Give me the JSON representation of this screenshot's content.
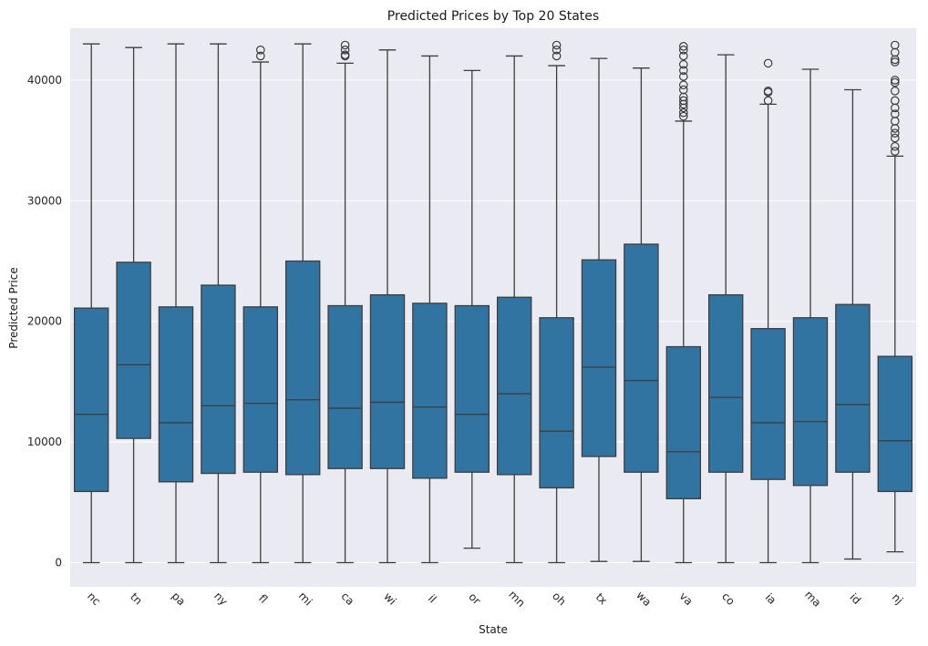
{
  "chart_data": {
    "type": "box",
    "title": "Predicted Prices by Top 20 States",
    "xlabel": "State",
    "ylabel": "Predicted Price",
    "ylim": [
      -2000,
      44300
    ],
    "yticks": [
      0,
      10000,
      20000,
      30000,
      40000
    ],
    "ytick_labels": [
      "0",
      "10000",
      "20000",
      "30000",
      "40000"
    ],
    "grid": true,
    "colors": {
      "box": "#3274a1",
      "background": "#eaeaf2",
      "line": "#3d3d3d",
      "grid": "#ffffff"
    },
    "categories": [
      "nc",
      "tn",
      "pa",
      "ny",
      "fl",
      "mi",
      "ca",
      "wi",
      "il",
      "or",
      "mn",
      "oh",
      "tx",
      "wa",
      "va",
      "co",
      "ia",
      "ma",
      "id",
      "nj"
    ],
    "boxes": [
      {
        "label": "nc",
        "whislo": 0,
        "q1": 5900,
        "med": 12300,
        "q3": 21100,
        "whishi": 43000,
        "fliers": []
      },
      {
        "label": "tn",
        "whislo": 0,
        "q1": 10300,
        "med": 16400,
        "q3": 24900,
        "whishi": 42700,
        "fliers": []
      },
      {
        "label": "pa",
        "whislo": 0,
        "q1": 6700,
        "med": 11600,
        "q3": 21200,
        "whishi": 43000,
        "fliers": []
      },
      {
        "label": "ny",
        "whislo": 0,
        "q1": 7400,
        "med": 13000,
        "q3": 23000,
        "whishi": 43000,
        "fliers": []
      },
      {
        "label": "fl",
        "whislo": 0,
        "q1": 7500,
        "med": 13200,
        "q3": 21200,
        "whishi": 41500,
        "fliers": [
          42000,
          42500
        ]
      },
      {
        "label": "mi",
        "whislo": 0,
        "q1": 7300,
        "med": 13500,
        "q3": 25000,
        "whishi": 43000,
        "fliers": []
      },
      {
        "label": "ca",
        "whislo": 0,
        "q1": 7800,
        "med": 12800,
        "q3": 21300,
        "whishi": 41400,
        "fliers": [
          42000,
          42100,
          42500,
          42900
        ]
      },
      {
        "label": "wi",
        "whislo": 0,
        "q1": 7800,
        "med": 13300,
        "q3": 22200,
        "whishi": 42500,
        "fliers": []
      },
      {
        "label": "il",
        "whislo": 0,
        "q1": 7000,
        "med": 12900,
        "q3": 21500,
        "whishi": 42000,
        "fliers": []
      },
      {
        "label": "or",
        "whislo": 1200,
        "q1": 7500,
        "med": 12300,
        "q3": 21300,
        "whishi": 40800,
        "fliers": []
      },
      {
        "label": "mn",
        "whislo": 0,
        "q1": 7300,
        "med": 14000,
        "q3": 22000,
        "whishi": 42000,
        "fliers": []
      },
      {
        "label": "oh",
        "whislo": 0,
        "q1": 6200,
        "med": 10900,
        "q3": 20300,
        "whishi": 41200,
        "fliers": [
          42000,
          42500,
          42900
        ]
      },
      {
        "label": "tx",
        "whislo": 100,
        "q1": 8800,
        "med": 16200,
        "q3": 25100,
        "whishi": 41800,
        "fliers": []
      },
      {
        "label": "wa",
        "whislo": 100,
        "q1": 7500,
        "med": 15100,
        "q3": 26400,
        "whishi": 41000,
        "fliers": []
      },
      {
        "label": "va",
        "whislo": 0,
        "q1": 5300,
        "med": 9200,
        "q3": 17900,
        "whishi": 36600,
        "fliers": [
          37000,
          37300,
          37700,
          38000,
          38300,
          38600,
          39200,
          39600,
          40300,
          40800,
          41300,
          42000,
          42500,
          42800
        ]
      },
      {
        "label": "co",
        "whislo": 0,
        "q1": 7500,
        "med": 13700,
        "q3": 22200,
        "whishi": 42100,
        "fliers": []
      },
      {
        "label": "ia",
        "whislo": 0,
        "q1": 6900,
        "med": 11600,
        "q3": 19400,
        "whishi": 38000,
        "fliers": [
          38300,
          39000,
          39100,
          41400
        ]
      },
      {
        "label": "ma",
        "whislo": 0,
        "q1": 6400,
        "med": 11700,
        "q3": 20300,
        "whishi": 40900,
        "fliers": []
      },
      {
        "label": "id",
        "whislo": 300,
        "q1": 7500,
        "med": 13100,
        "q3": 21400,
        "whishi": 39200,
        "fliers": []
      },
      {
        "label": "nj",
        "whislo": 900,
        "q1": 5900,
        "med": 10100,
        "q3": 17100,
        "whishi": 33700,
        "fliers": [
          34100,
          34500,
          35200,
          35600,
          36000,
          36600,
          37200,
          37700,
          38300,
          39100,
          39800,
          40000,
          41500,
          41700,
          42300,
          42900
        ]
      }
    ]
  }
}
